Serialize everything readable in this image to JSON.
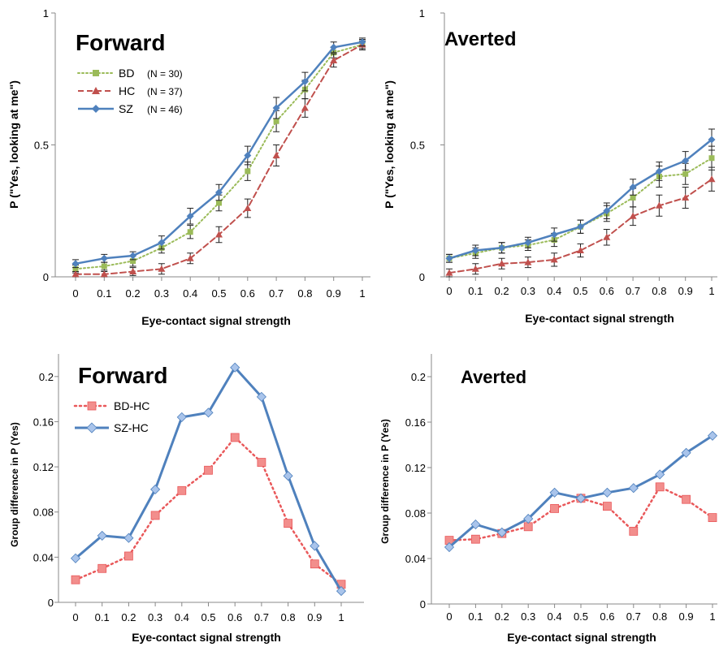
{
  "chart_data": [
    {
      "id": "forward-top",
      "type": "line",
      "title": "Forward",
      "xlabel": "Eye-contact signal strength",
      "ylabel": "P (\"Yes, looking at me\")",
      "x": [
        0,
        0.1,
        0.2,
        0.3,
        0.4,
        0.5,
        0.6,
        0.7,
        0.8,
        0.9,
        1
      ],
      "xticks": [
        "0",
        "0.1",
        "0.2",
        "0.3",
        "0.4",
        "0.5",
        "0.6",
        "0.7",
        "0.8",
        "0.9",
        "1"
      ],
      "ylim": [
        0,
        1
      ],
      "yticks": [
        "0",
        "0.5",
        "1"
      ],
      "legend_position": "top-left",
      "series": [
        {
          "name": "BD",
          "n_label": "(N = 30)",
          "color": "#9bbb59",
          "marker": "square",
          "dash": "dotted",
          "values": [
            0.03,
            0.04,
            0.06,
            0.11,
            0.17,
            0.28,
            0.4,
            0.59,
            0.71,
            0.85,
            0.88
          ],
          "errors": [
            0.015,
            0.015,
            0.02,
            0.02,
            0.025,
            0.03,
            0.035,
            0.04,
            0.035,
            0.02,
            0.015
          ]
        },
        {
          "name": "HC",
          "n_label": "(N = 37)",
          "color": "#c0504d",
          "marker": "triangle",
          "dash": "dashed",
          "values": [
            0.01,
            0.01,
            0.02,
            0.03,
            0.07,
            0.16,
            0.26,
            0.46,
            0.64,
            0.82,
            0.88
          ],
          "errors": [
            0.01,
            0.01,
            0.015,
            0.02,
            0.02,
            0.03,
            0.035,
            0.04,
            0.035,
            0.025,
            0.02
          ]
        },
        {
          "name": "SZ",
          "n_label": "(N = 46)",
          "color": "#4f81bd",
          "marker": "diamond",
          "dash": "solid",
          "values": [
            0.05,
            0.07,
            0.08,
            0.13,
            0.23,
            0.32,
            0.46,
            0.64,
            0.74,
            0.87,
            0.89
          ],
          "errors": [
            0.015,
            0.015,
            0.015,
            0.025,
            0.03,
            0.03,
            0.035,
            0.04,
            0.035,
            0.02,
            0.015
          ]
        }
      ]
    },
    {
      "id": "averted-top",
      "type": "line",
      "title": "Averted",
      "xlabel": "Eye-contact signal strength",
      "ylabel": "P (\"Yes, looking at me\")",
      "x": [
        0,
        0.1,
        0.2,
        0.3,
        0.4,
        0.5,
        0.6,
        0.7,
        0.8,
        0.9,
        1
      ],
      "xticks": [
        "0",
        "0.1",
        "0.2",
        "0.3",
        "0.4",
        "0.5",
        "0.6",
        "0.7",
        "0.8",
        "0.9",
        "1"
      ],
      "ylim": [
        0,
        1
      ],
      "yticks": [
        "0",
        "0.5",
        "1"
      ],
      "series": [
        {
          "name": "BD",
          "color": "#9bbb59",
          "marker": "square",
          "dash": "dotted",
          "values": [
            0.07,
            0.09,
            0.11,
            0.12,
            0.14,
            0.19,
            0.24,
            0.3,
            0.38,
            0.39,
            0.45
          ],
          "errors": [
            0.015,
            0.02,
            0.02,
            0.02,
            0.025,
            0.025,
            0.03,
            0.035,
            0.04,
            0.04,
            0.045
          ]
        },
        {
          "name": "HC",
          "color": "#c0504d",
          "marker": "triangle",
          "dash": "dashed",
          "values": [
            0.015,
            0.03,
            0.05,
            0.055,
            0.065,
            0.1,
            0.15,
            0.23,
            0.27,
            0.3,
            0.37
          ],
          "errors": [
            0.015,
            0.02,
            0.02,
            0.02,
            0.025,
            0.025,
            0.03,
            0.035,
            0.04,
            0.04,
            0.045
          ]
        },
        {
          "name": "SZ",
          "color": "#4f81bd",
          "marker": "diamond",
          "dash": "solid",
          "values": [
            0.07,
            0.1,
            0.11,
            0.13,
            0.16,
            0.19,
            0.25,
            0.34,
            0.4,
            0.44,
            0.52
          ],
          "errors": [
            0.015,
            0.02,
            0.02,
            0.02,
            0.025,
            0.025,
            0.03,
            0.03,
            0.035,
            0.035,
            0.04
          ]
        }
      ]
    },
    {
      "id": "forward-bottom",
      "type": "line",
      "title": "Forward",
      "xlabel": "Eye-contact signal strength",
      "ylabel": "Group difference in P (Yes)",
      "x": [
        0,
        0.1,
        0.2,
        0.3,
        0.4,
        0.5,
        0.6,
        0.7,
        0.8,
        0.9,
        1
      ],
      "xticks": [
        "0",
        "0.1",
        "0.2",
        "0.3",
        "0.4",
        "0.5",
        "0.6",
        "0.7",
        "0.8",
        "0.9",
        "1"
      ],
      "ylim": [
        0,
        0.22
      ],
      "yticks": [
        "0",
        "0.04",
        "0.08",
        "0.12",
        "0.16",
        "0.2"
      ],
      "legend_position": "top-left",
      "series": [
        {
          "name": "BD-HC",
          "color": "#e9585a",
          "marker_fill": "#f28e8c",
          "marker": "square",
          "dash": "dotted",
          "values": [
            0.02,
            0.03,
            0.041,
            0.077,
            0.099,
            0.117,
            0.146,
            0.124,
            0.07,
            0.034,
            0.016
          ]
        },
        {
          "name": "SZ-HC",
          "color": "#4f81bd",
          "marker_fill": "#a9c4eb",
          "marker": "diamond",
          "dash": "solid",
          "values": [
            0.039,
            0.059,
            0.057,
            0.1,
            0.164,
            0.168,
            0.208,
            0.182,
            0.112,
            0.05,
            0.01
          ]
        }
      ]
    },
    {
      "id": "averted-bottom",
      "type": "line",
      "title": "Averted",
      "xlabel": "Eye-contact signal strength",
      "ylabel": "Group difference in P (Yes)",
      "x": [
        0,
        0.1,
        0.2,
        0.3,
        0.4,
        0.5,
        0.6,
        0.7,
        0.8,
        0.9,
        1
      ],
      "xticks": [
        "0",
        "0.1",
        "0.2",
        "0.3",
        "0.4",
        "0.5",
        "0.6",
        "0.7",
        "0.8",
        "0.9",
        "1"
      ],
      "ylim": [
        0,
        0.22
      ],
      "yticks": [
        "0",
        "0.04",
        "0.08",
        "0.12",
        "0.16",
        "0.2"
      ],
      "series": [
        {
          "name": "BD-HC",
          "color": "#e9585a",
          "marker_fill": "#f28e8c",
          "marker": "square",
          "dash": "dotted",
          "values": [
            0.056,
            0.057,
            0.062,
            0.068,
            0.084,
            0.093,
            0.086,
            0.064,
            0.103,
            0.092,
            0.076
          ]
        },
        {
          "name": "SZ-HC",
          "color": "#4f81bd",
          "marker_fill": "#a9c4eb",
          "marker": "diamond",
          "dash": "solid",
          "values": [
            0.05,
            0.07,
            0.063,
            0.075,
            0.098,
            0.093,
            0.098,
            0.102,
            0.114,
            0.133,
            0.148
          ]
        }
      ]
    }
  ]
}
